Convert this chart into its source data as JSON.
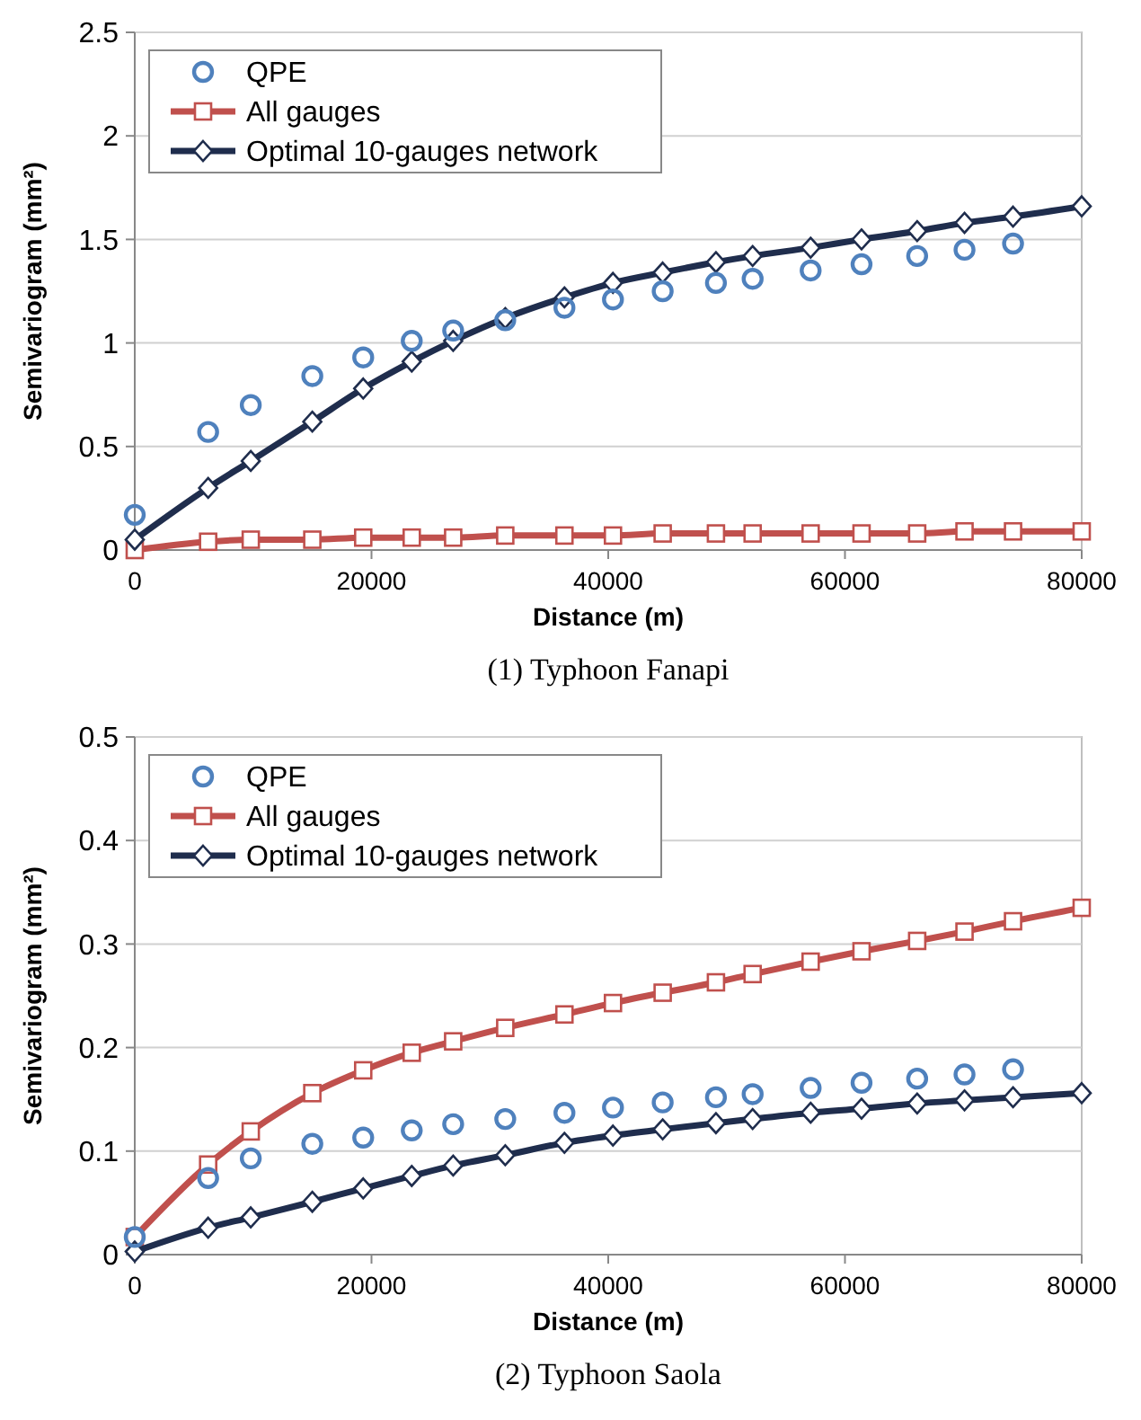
{
  "chart_data": [
    {
      "type": "line",
      "title": "(1) Typhoon Fanapi",
      "xlabel": "Distance (m)",
      "ylabel": "Semivariogram (mm²)",
      "xlim": [
        0,
        80000
      ],
      "xticks": [
        0,
        20000,
        40000,
        60000,
        80000
      ],
      "ylim": [
        0,
        2.5
      ],
      "yticks": [
        0,
        0.5,
        1,
        1.5,
        2,
        2.5
      ],
      "grid": "y",
      "legend": "top left",
      "series": [
        {
          "name": "QPE",
          "type": "scatter",
          "marker": "circle",
          "color": "#4f81bd",
          "x": [
            0,
            6200,
            9800,
            15000,
            19300,
            23400,
            26900,
            31300,
            36300,
            40400,
            44600,
            49100,
            52200,
            57100,
            61400,
            66100,
            70100,
            74200
          ],
          "values": [
            0.17,
            0.57,
            0.7,
            0.84,
            0.93,
            1.01,
            1.06,
            1.11,
            1.17,
            1.21,
            1.25,
            1.29,
            1.31,
            1.35,
            1.38,
            1.42,
            1.45,
            1.48
          ]
        },
        {
          "name": "All gauges",
          "marker": "square",
          "color": "#c0504d",
          "x": [
            0,
            6200,
            9800,
            15000,
            19300,
            23400,
            26900,
            31300,
            36300,
            40400,
            44600,
            49100,
            52200,
            57100,
            61400,
            66100,
            70100,
            74200,
            80000
          ],
          "values": [
            0,
            0.04,
            0.05,
            0.05,
            0.06,
            0.06,
            0.06,
            0.07,
            0.07,
            0.07,
            0.08,
            0.08,
            0.08,
            0.08,
            0.08,
            0.08,
            0.09,
            0.09,
            0.09
          ]
        },
        {
          "name": "Optimal 10-gauges network",
          "marker": "diamond",
          "color": "#1f2d4d",
          "x": [
            0,
            6200,
            9800,
            15000,
            19300,
            23400,
            26900,
            31300,
            36300,
            40400,
            44600,
            49100,
            52200,
            57100,
            61400,
            66100,
            70100,
            74200,
            80000
          ],
          "values": [
            0.05,
            0.3,
            0.43,
            0.62,
            0.78,
            0.91,
            1.01,
            1.12,
            1.22,
            1.29,
            1.34,
            1.39,
            1.42,
            1.46,
            1.5,
            1.54,
            1.58,
            1.61,
            1.66
          ]
        }
      ]
    },
    {
      "type": "line",
      "title": "(2) Typhoon Saola",
      "xlabel": "Distance (m)",
      "ylabel": "Semivariogram (mm²)",
      "xlim": [
        0,
        80000
      ],
      "xticks": [
        0,
        20000,
        40000,
        60000,
        80000
      ],
      "ylim": [
        0,
        0.5
      ],
      "yticks": [
        0,
        0.1,
        0.2,
        0.3,
        0.4,
        0.5
      ],
      "grid": "y",
      "legend": "top left",
      "series": [
        {
          "name": "QPE",
          "type": "scatter",
          "marker": "circle",
          "color": "#4f81bd",
          "x": [
            0,
            6200,
            9800,
            15000,
            19300,
            23400,
            26900,
            31300,
            36300,
            40400,
            44600,
            49100,
            52200,
            57100,
            61400,
            66100,
            70100,
            74200
          ],
          "values": [
            0.017,
            0.074,
            0.093,
            0.107,
            0.113,
            0.12,
            0.126,
            0.131,
            0.137,
            0.142,
            0.147,
            0.152,
            0.155,
            0.161,
            0.166,
            0.17,
            0.174,
            0.179
          ]
        },
        {
          "name": "All gauges",
          "marker": "square",
          "color": "#c0504d",
          "x": [
            0,
            6200,
            9800,
            15000,
            19300,
            23400,
            26900,
            31300,
            36300,
            40400,
            44600,
            49100,
            52200,
            57100,
            61400,
            66100,
            70100,
            74200,
            80000
          ],
          "values": [
            0.017,
            0.087,
            0.119,
            0.156,
            0.178,
            0.195,
            0.206,
            0.219,
            0.232,
            0.243,
            0.253,
            0.263,
            0.271,
            0.283,
            0.293,
            0.303,
            0.312,
            0.322,
            0.335
          ]
        },
        {
          "name": "Optimal 10-gauges network",
          "marker": "diamond",
          "color": "#1f2d4d",
          "x": [
            0,
            6200,
            9800,
            15000,
            19300,
            23400,
            26900,
            31300,
            36300,
            40400,
            44600,
            49100,
            52200,
            57100,
            61400,
            66100,
            70100,
            74200,
            80000
          ],
          "values": [
            0.003,
            0.026,
            0.036,
            0.051,
            0.064,
            0.076,
            0.086,
            0.096,
            0.108,
            0.115,
            0.121,
            0.127,
            0.131,
            0.137,
            0.141,
            0.146,
            0.149,
            0.152,
            0.156
          ]
        }
      ]
    }
  ]
}
